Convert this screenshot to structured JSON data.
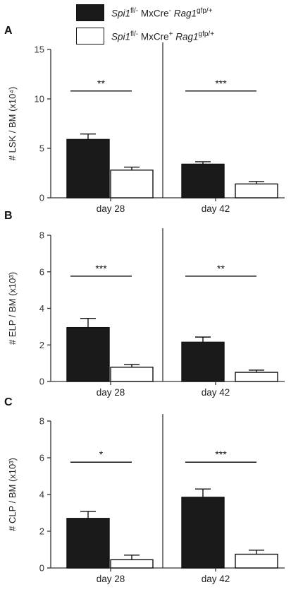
{
  "legend": [
    {
      "fill": "#1a1a1a",
      "gene": "Spi1",
      "gene_sup": "fl/-",
      "cre": " MxCre",
      "cre_sup": "-",
      "rag": " Rag1",
      "rag_sup": "gfp/+"
    },
    {
      "fill": "#ffffff",
      "gene": "Spi1",
      "gene_sup": "fl/-",
      "cre": " MxCre",
      "cre_sup": "+",
      "rag": " Rag1",
      "rag_sup": "gfp/+"
    }
  ],
  "chart_data": [
    {
      "type": "bar",
      "panel": "A",
      "ylabel": "# LSK / BM (x10⁴)",
      "ylim": [
        0,
        15
      ],
      "yticks": [
        0,
        5,
        10,
        15
      ],
      "categories": [
        "day 28",
        "day 42"
      ],
      "series": [
        {
          "fill": "#1a1a1a",
          "values": [
            5.9,
            3.4
          ],
          "errors": [
            0.55,
            0.25
          ]
        },
        {
          "fill": "#ffffff",
          "values": [
            2.8,
            1.4
          ],
          "errors": [
            0.3,
            0.25
          ]
        }
      ],
      "significance": [
        "**",
        "***"
      ]
    },
    {
      "type": "bar",
      "panel": "B",
      "ylabel": "# ELP / BM (x10³)",
      "ylim": [
        0,
        8
      ],
      "yticks": [
        0,
        2,
        4,
        6,
        8
      ],
      "categories": [
        "day 28",
        "day 42"
      ],
      "series": [
        {
          "fill": "#1a1a1a",
          "values": [
            2.95,
            2.15
          ],
          "errors": [
            0.5,
            0.28
          ]
        },
        {
          "fill": "#ffffff",
          "values": [
            0.78,
            0.5
          ],
          "errors": [
            0.15,
            0.12
          ]
        }
      ],
      "significance": [
        "***",
        "**"
      ]
    },
    {
      "type": "bar",
      "panel": "C",
      "ylabel": "# CLP / BM (x10³)",
      "ylim": [
        0,
        8
      ],
      "yticks": [
        0,
        2,
        4,
        6,
        8
      ],
      "categories": [
        "day 28",
        "day 42"
      ],
      "series": [
        {
          "fill": "#1a1a1a",
          "values": [
            2.7,
            3.85
          ],
          "errors": [
            0.38,
            0.45
          ]
        },
        {
          "fill": "#ffffff",
          "values": [
            0.45,
            0.75
          ],
          "errors": [
            0.25,
            0.22
          ]
        }
      ],
      "significance": [
        "*",
        "***"
      ]
    }
  ]
}
